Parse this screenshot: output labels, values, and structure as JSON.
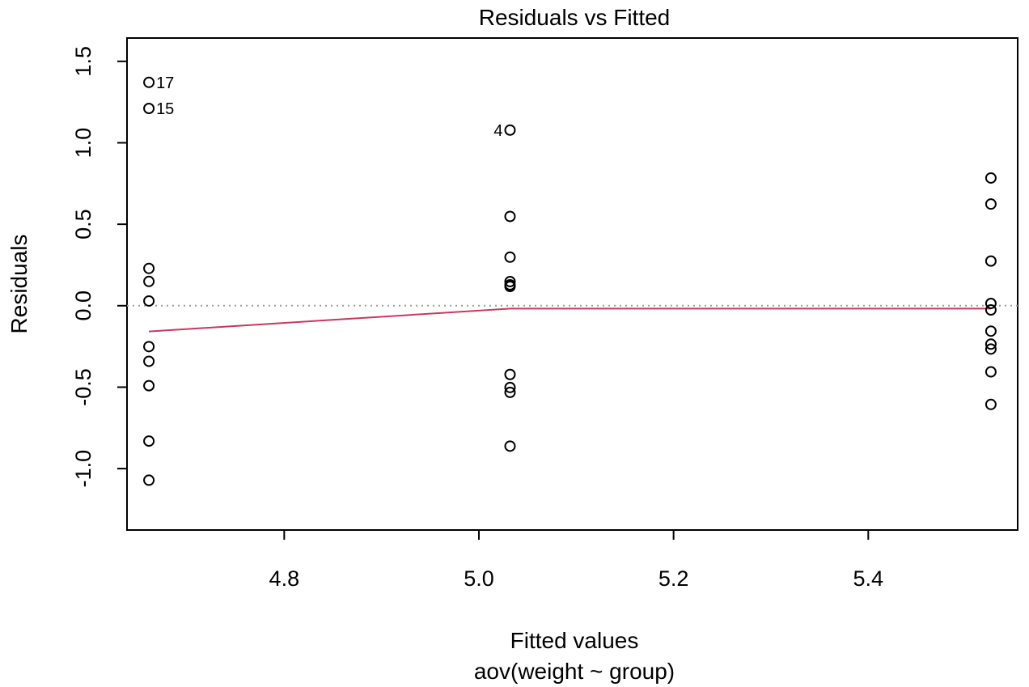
{
  "chart_data": {
    "type": "scatter",
    "title": "Residuals vs Fitted",
    "xlabel": "Fitted values",
    "subtitle": "aov(weight ~ group)",
    "ylabel": "Residuals",
    "xlim": [
      4.6385,
      5.5535
    ],
    "ylim": [
      -1.3769,
      1.6431
    ],
    "x_ticks": [
      4.8,
      5.0,
      5.2,
      5.4
    ],
    "x_tick_labels": [
      "4.8",
      "5.0",
      "5.2",
      "5.4"
    ],
    "y_ticks": [
      -1.0,
      -0.5,
      0.0,
      0.5,
      1.0,
      1.5
    ],
    "y_tick_labels": [
      "-1.0",
      "-0.5",
      "0.0",
      "0.5",
      "1.0",
      "1.5"
    ],
    "points": [
      {
        "x": 4.661,
        "y": 1.371,
        "label": "17"
      },
      {
        "x": 4.661,
        "y": 1.211,
        "label": "15"
      },
      {
        "x": 4.661,
        "y": 0.229
      },
      {
        "x": 4.661,
        "y": 0.149
      },
      {
        "x": 4.661,
        "y": 0.029
      },
      {
        "x": 4.661,
        "y": -0.251
      },
      {
        "x": 4.661,
        "y": -0.341
      },
      {
        "x": 4.661,
        "y": -0.491
      },
      {
        "x": 4.661,
        "y": -0.831
      },
      {
        "x": 4.661,
        "y": -1.071
      },
      {
        "x": 5.032,
        "y": 1.078,
        "label": "4"
      },
      {
        "x": 5.032,
        "y": 0.548
      },
      {
        "x": 5.032,
        "y": 0.298
      },
      {
        "x": 5.032,
        "y": 0.148
      },
      {
        "x": 5.032,
        "y": 0.128
      },
      {
        "x": 5.032,
        "y": 0.118
      },
      {
        "x": 5.032,
        "y": -0.422
      },
      {
        "x": 5.032,
        "y": -0.502
      },
      {
        "x": 5.032,
        "y": -0.532
      },
      {
        "x": 5.032,
        "y": -0.862
      },
      {
        "x": 5.526,
        "y": 0.784
      },
      {
        "x": 5.526,
        "y": 0.624
      },
      {
        "x": 5.526,
        "y": 0.274
      },
      {
        "x": 5.526,
        "y": 0.014
      },
      {
        "x": 5.526,
        "y": -0.026
      },
      {
        "x": 5.526,
        "y": -0.156
      },
      {
        "x": 5.526,
        "y": -0.236
      },
      {
        "x": 5.526,
        "y": -0.266
      },
      {
        "x": 5.526,
        "y": -0.406
      },
      {
        "x": 5.526,
        "y": -0.606
      }
    ],
    "reference_line": {
      "y": 0,
      "style": "dotted",
      "color": "#9e9e9e"
    },
    "smooth_line": {
      "color": "#c73860",
      "x": [
        4.661,
        5.032,
        5.526
      ],
      "y": [
        -0.158,
        -0.018,
        -0.018
      ]
    }
  }
}
